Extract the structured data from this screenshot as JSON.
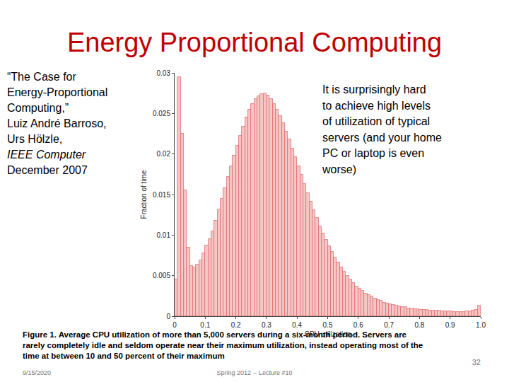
{
  "chart_data": {
    "type": "histogram",
    "x_label": "CPU utilization",
    "y_label": "Fraction of time",
    "bins": [
      0,
      0.01,
      0.02,
      0.03,
      0.04,
      0.05,
      0.06,
      0.07,
      0.08,
      0.09,
      0.1,
      0.11,
      0.12,
      0.13,
      0.14,
      0.15,
      0.16,
      0.17,
      0.18,
      0.19,
      0.2,
      0.21,
      0.22,
      0.23,
      0.24,
      0.25,
      0.26,
      0.27,
      0.28,
      0.29,
      0.3,
      0.31,
      0.32,
      0.33,
      0.34,
      0.35,
      0.36,
      0.37,
      0.38,
      0.39,
      0.4,
      0.41,
      0.42,
      0.43,
      0.44,
      0.45,
      0.46,
      0.47,
      0.48,
      0.49,
      0.5,
      0.51,
      0.52,
      0.53,
      0.54,
      0.55,
      0.56,
      0.57,
      0.58,
      0.59,
      0.6,
      0.61,
      0.62,
      0.63,
      0.64,
      0.65,
      0.66,
      0.67,
      0.68,
      0.69,
      0.7,
      0.71,
      0.72,
      0.73,
      0.74,
      0.75,
      0.76,
      0.77,
      0.78,
      0.79,
      0.8,
      0.81,
      0.82,
      0.83,
      0.84,
      0.85,
      0.86,
      0.87,
      0.88,
      0.89,
      0.9,
      0.91,
      0.92,
      0.93,
      0.94,
      0.95,
      0.96,
      0.97,
      0.98,
      0.99,
      1.0
    ],
    "values": [
      0.0045,
      0.0295,
      0.0225,
      0.0155,
      0.0085,
      0.0062,
      0.006,
      0.0064,
      0.0069,
      0.0078,
      0.0087,
      0.0095,
      0.0105,
      0.0118,
      0.0132,
      0.0145,
      0.0158,
      0.0172,
      0.0185,
      0.0198,
      0.021,
      0.0222,
      0.0234,
      0.0245,
      0.0255,
      0.0262,
      0.0268,
      0.0271,
      0.0274,
      0.0275,
      0.0272,
      0.0268,
      0.0262,
      0.0255,
      0.0247,
      0.0238,
      0.0228,
      0.0218,
      0.0207,
      0.0196,
      0.0185,
      0.0174,
      0.0163,
      0.0152,
      0.0141,
      0.0131,
      0.0121,
      0.0111,
      0.0102,
      0.0094,
      0.0086,
      0.0079,
      0.0072,
      0.0066,
      0.006,
      0.0055,
      0.005,
      0.0045,
      0.0041,
      0.0037,
      0.0034,
      0.0031,
      0.0028,
      0.0026,
      0.0024,
      0.0022,
      0.002,
      0.0019,
      0.0017,
      0.0016,
      0.0015,
      0.0014,
      0.0013,
      0.0012,
      0.0011,
      0.0011,
      0.001,
      0.001,
      0.0009,
      0.0009,
      0.0008,
      0.0008,
      0.0008,
      0.0007,
      0.0007,
      0.0007,
      0.0007,
      0.0006,
      0.0006,
      0.0006,
      0.0006,
      0.0005,
      0.0005,
      0.0005,
      0.0005,
      0.0006,
      0.0006,
      0.0007,
      0.0008,
      0.0013
    ],
    "color": "#f6c6c6",
    "xlim": [
      0,
      1.0
    ],
    "xticks": [
      0,
      0.1,
      0.2,
      0.3,
      0.4,
      0.5,
      0.6,
      0.7,
      0.8,
      0.9,
      {
        "value": 1.0,
        "label": "1.0"
      }
    ],
    "ylim": [
      0,
      0.03
    ],
    "yticks": [
      0,
      0.005,
      0.01,
      0.015,
      0.02,
      0.025,
      0.03
    ],
    "grid": false
  },
  "slide": {
    "title": "Energy Proportional Computing",
    "citation_lines": [
      "“The Case for",
      "Energy-Proportional",
      "Computing,”",
      "Luiz André Barroso,",
      "Urs Hölzle,",
      "IEEE Computer",
      "December 2007"
    ],
    "note_lines": [
      "It is surprisingly hard",
      "to achieve high levels",
      "of utilization of typical",
      "servers (and your home",
      "PC or laptop is even",
      "worse)"
    ],
    "caption": "Figure 1. Average CPU utilization of more than 5,000 servers during a six-month period. Servers are rarely completely idle and seldom operate near their maximum utilization, instead operating most of the time at between 10 and 50 percent of their maximum",
    "footer_date": "9/15/2020",
    "footer_center": "Spring 2012 -- Lecture #10",
    "page_number": "32"
  }
}
